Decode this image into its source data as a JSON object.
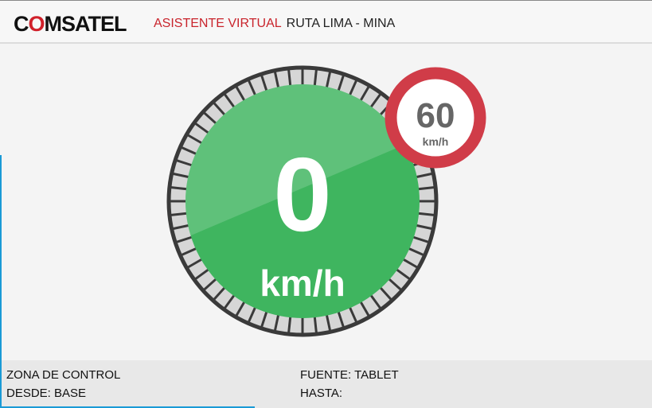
{
  "header": {
    "logo_text": "COMSATEL",
    "logo_prefix": "C",
    "logo_o": "O",
    "logo_suffix": "MSATEL",
    "assistant_label": "ASISTENTE VIRTUAL",
    "route": "RUTA LIMA - MINA"
  },
  "speedometer": {
    "speed": "0",
    "unit": "km/h",
    "status_color": "#3fb55f",
    "speed_limit": "60",
    "limit_unit": "km/h",
    "limit_color": "#d03c48"
  },
  "footer": {
    "zone": "ZONA DE CONTROL",
    "from_label": "DESDE:",
    "from_value": "BASE",
    "source_label": "FUENTE:",
    "source_value": "TABLET",
    "to_label": "HASTA:",
    "to_value": ""
  }
}
